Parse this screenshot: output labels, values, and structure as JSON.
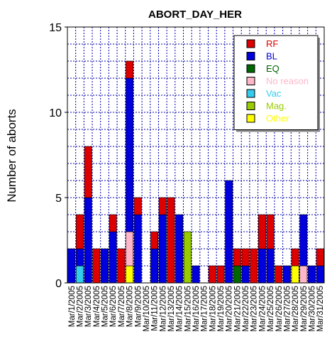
{
  "chart_data": {
    "type": "bar",
    "stacked": true,
    "title": "ABORT_DAY_HER",
    "ylabel": "Number of aborts",
    "xlabel": "",
    "ylim": [
      0,
      15
    ],
    "yticks": [
      0,
      5,
      10,
      15
    ],
    "grid": true,
    "legend_position": "top-right",
    "categories": [
      "Mar/1/2005",
      "Mar/2/2005",
      "Mar/3/2005",
      "Mar/4/2005",
      "Mar/5/2005",
      "Mar/6/2005",
      "Mar/7/2005",
      "Mar/8/2005",
      "Mar/9/2005",
      "Mar/10/2005",
      "Mar/11/2005",
      "Mar/12/2005",
      "Mar/13/2005",
      "Mar/14/2005",
      "Mar/15/2005",
      "Mar/16/2005",
      "Mar/17/2005",
      "Mar/18/2005",
      "Mar/19/2005",
      "Mar/20/2005",
      "Mar/21/2005",
      "Mar/22/2005",
      "Mar/23/2005",
      "Mar/24/2005",
      "Mar/25/2005",
      "Mar/26/2005",
      "Mar/27/2005",
      "Mar/28/2005",
      "Mar/29/2005",
      "Mar/30/2005",
      "Mar/31/2005"
    ],
    "series": [
      {
        "name": "Vac",
        "color": "#33ccee",
        "values": [
          0,
          1,
          0,
          0,
          0,
          0,
          0,
          0,
          0,
          0,
          0,
          0,
          0,
          0,
          0,
          0,
          0,
          0,
          0,
          0,
          0,
          0,
          0,
          0,
          0,
          0,
          0,
          0,
          0,
          0,
          0
        ]
      },
      {
        "name": "EQ",
        "color": "#006600",
        "values": [
          0,
          0,
          0,
          0,
          0,
          0,
          0,
          0,
          0,
          0,
          0,
          0,
          0,
          0,
          0,
          0,
          0,
          0,
          0,
          0,
          1,
          0,
          0,
          0,
          0,
          0,
          0,
          0,
          0,
          0,
          0
        ]
      },
      {
        "name": "Other",
        "color": "#ffff00",
        "values": [
          0,
          0,
          0,
          0,
          0,
          0,
          0,
          1,
          0,
          0,
          0,
          0,
          0,
          0,
          0,
          0,
          0,
          0,
          0,
          0,
          0,
          0,
          0,
          0,
          0,
          0,
          0,
          1,
          0,
          0,
          0
        ]
      },
      {
        "name": "No reason",
        "color": "#ffb6c8",
        "values": [
          0,
          0,
          0,
          0,
          0,
          0,
          0,
          2,
          0,
          0,
          0,
          0,
          0,
          0,
          0,
          0,
          0,
          0,
          0,
          0,
          0,
          0,
          0,
          0,
          0,
          0,
          0,
          0,
          1,
          0,
          0
        ]
      },
      {
        "name": "Mag.",
        "color": "#99cc00",
        "values": [
          0,
          0,
          0,
          0,
          0,
          0,
          0,
          0,
          0,
          0,
          0,
          0,
          0,
          0,
          3,
          0,
          0,
          0,
          0,
          0,
          0,
          0,
          0,
          0,
          0,
          0,
          0,
          0,
          0,
          0,
          0
        ]
      },
      {
        "name": "BL",
        "color": "#0000dd",
        "values": [
          2,
          1,
          5,
          0,
          2,
          3,
          0,
          9,
          4,
          0,
          2,
          4,
          0,
          4,
          0,
          1,
          0,
          0,
          0,
          6,
          0,
          1,
          0,
          2,
          2,
          0,
          1,
          0,
          3,
          1,
          1
        ]
      },
      {
        "name": "RF",
        "color": "#dd0000",
        "values": [
          0,
          2,
          3,
          2,
          0,
          1,
          2,
          1,
          1,
          0,
          1,
          1,
          5,
          0,
          0,
          0,
          0,
          1,
          1,
          0,
          1,
          1,
          2,
          2,
          2,
          1,
          0,
          1,
          0,
          0,
          1
        ]
      }
    ],
    "legend": [
      {
        "label": "RF",
        "color": "#dd0000",
        "text_color": "#dd0000"
      },
      {
        "label": "BL",
        "color": "#0000dd",
        "text_color": "#0000dd"
      },
      {
        "label": "EQ",
        "color": "#006600",
        "text_color": "#006600"
      },
      {
        "label": "No reason",
        "color": "#ffb6c8",
        "text_color": "#ffb6c8"
      },
      {
        "label": "Vac",
        "color": "#33ccee",
        "text_color": "#33ccee"
      },
      {
        "label": "Mag.",
        "color": "#99cc00",
        "text_color": "#99cc00"
      },
      {
        "label": "Other",
        "color": "#ffff00",
        "text_color": "#ffff00"
      }
    ]
  }
}
